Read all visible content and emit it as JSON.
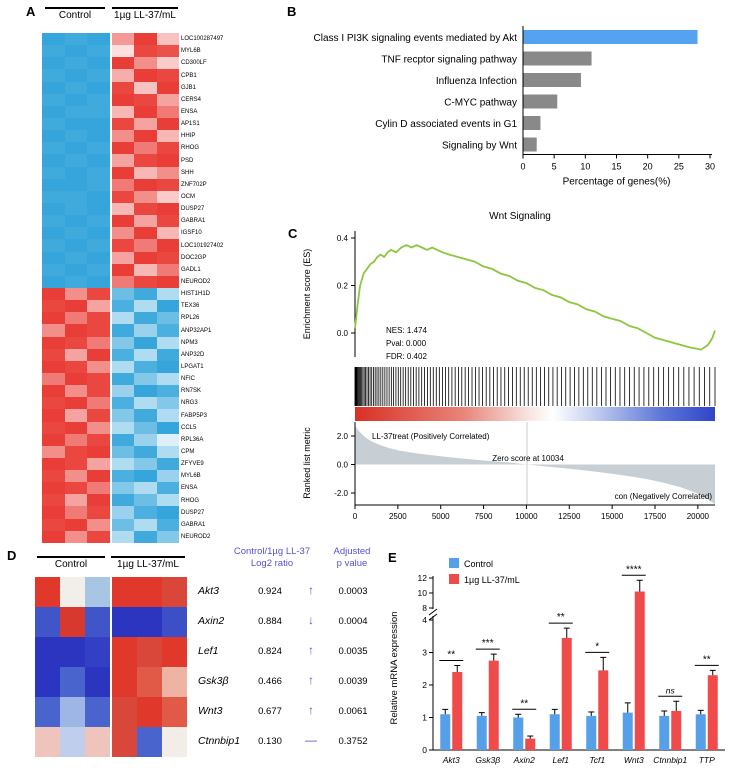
{
  "panel_a": {
    "label": "A",
    "group_headers": [
      "Control",
      "1µg LL-37/mL"
    ],
    "genes": [
      "LOC100287497",
      "MYL6B",
      "CD300LF",
      "CPB1",
      "GJB1",
      "CERS4",
      "ENSA",
      "AP1S1",
      "HHIP",
      "RHOG",
      "PSD",
      "SHH",
      "ZNF702P",
      "OCM",
      "DUSP27",
      "GABRA1",
      "IGSF10",
      "LOC101927402",
      "DOC2GP",
      "GADL1",
      "NEUROD2",
      "HIST1H1D",
      "TEX36",
      "RPL26",
      "ANP32AP1",
      "NPM3",
      "ANP32D",
      "LPGAT1",
      "NFIC",
      "RN7SK",
      "NRG3",
      "FABP5P3",
      "CCL5",
      "RPL36A",
      "CPM",
      "ZFYVE9",
      "MYL6B",
      "ENSA",
      "RHOG",
      "DUSP27",
      "GABRA1",
      "NEUROD2"
    ],
    "colors": {
      "positive": "#E8332C",
      "negative": "#1E9BD7"
    },
    "heatmap_values": [
      [
        -0.9,
        -0.85,
        -0.9,
        0.5,
        0.95,
        0.3
      ],
      [
        -0.85,
        -0.9,
        -0.85,
        0.15,
        0.9,
        0.85
      ],
      [
        -0.9,
        -0.85,
        -0.9,
        0.95,
        0.55,
        0.25
      ],
      [
        -0.85,
        -0.9,
        -0.85,
        0.4,
        0.95,
        0.9
      ],
      [
        -0.9,
        -0.85,
        -0.9,
        0.9,
        0.3,
        0.95
      ],
      [
        -0.85,
        -0.9,
        -0.85,
        0.95,
        0.9,
        0.45
      ],
      [
        -0.9,
        -0.85,
        -0.85,
        0.35,
        0.95,
        0.65
      ],
      [
        -0.85,
        -0.9,
        -0.9,
        0.9,
        0.45,
        0.95
      ],
      [
        -0.9,
        -0.85,
        -0.9,
        0.55,
        0.95,
        0.35
      ],
      [
        -0.85,
        -0.9,
        -0.85,
        0.95,
        0.65,
        0.9
      ],
      [
        -0.9,
        -0.85,
        -0.9,
        0.45,
        0.9,
        0.95
      ],
      [
        -0.85,
        -0.9,
        -0.85,
        0.95,
        0.35,
        0.55
      ],
      [
        -0.9,
        -0.9,
        -0.85,
        0.65,
        0.95,
        0.9
      ],
      [
        -0.85,
        -0.85,
        -0.9,
        0.9,
        0.55,
        0.25
      ],
      [
        -0.9,
        -0.85,
        -0.9,
        0.35,
        0.9,
        0.95
      ],
      [
        -0.85,
        -0.9,
        -0.85,
        0.95,
        0.45,
        0.9
      ],
      [
        -0.9,
        -0.85,
        -0.9,
        0.55,
        0.95,
        0.35
      ],
      [
        -0.85,
        -0.9,
        -0.85,
        0.9,
        0.65,
        0.95
      ],
      [
        -0.9,
        -0.85,
        -0.9,
        0.45,
        0.95,
        0.9
      ],
      [
        -0.85,
        -0.9,
        -0.85,
        0.95,
        0.35,
        0.65
      ],
      [
        -0.9,
        -0.85,
        -0.9,
        0.65,
        0.9,
        0.95
      ],
      [
        0.95,
        0.55,
        0.9,
        -0.65,
        -0.85,
        -0.35
      ],
      [
        0.9,
        0.95,
        0.45,
        -0.8,
        -0.35,
        -0.9
      ],
      [
        0.95,
        0.65,
        0.9,
        -0.35,
        -0.85,
        -0.65
      ],
      [
        0.55,
        0.95,
        0.9,
        -0.85,
        -0.45,
        -0.8
      ],
      [
        0.95,
        0.9,
        0.65,
        -0.55,
        -0.9,
        -0.35
      ],
      [
        0.9,
        0.45,
        0.95,
        -0.8,
        -0.35,
        -0.85
      ],
      [
        0.95,
        0.9,
        0.55,
        -0.35,
        -0.8,
        -0.9
      ],
      [
        0.65,
        0.95,
        0.9,
        -0.85,
        -0.55,
        -0.35
      ],
      [
        0.95,
        0.55,
        0.9,
        -0.45,
        -0.9,
        -0.8
      ],
      [
        0.9,
        0.95,
        0.65,
        -0.8,
        -0.35,
        -0.55
      ],
      [
        0.95,
        0.45,
        0.9,
        -0.55,
        -0.85,
        -0.35
      ],
      [
        0.9,
        0.95,
        0.55,
        -0.35,
        -0.65,
        -0.9
      ],
      [
        0.95,
        0.65,
        0.9,
        -0.85,
        -0.45,
        -0.15
      ],
      [
        0.55,
        0.9,
        0.95,
        -0.65,
        -0.85,
        -0.35
      ],
      [
        0.95,
        0.9,
        0.45,
        -0.35,
        -0.55,
        -0.85
      ],
      [
        0.9,
        0.55,
        0.95,
        -0.8,
        -0.9,
        -0.45
      ],
      [
        0.95,
        0.9,
        0.65,
        -0.55,
        -0.35,
        -0.8
      ],
      [
        0.9,
        0.45,
        0.95,
        -0.85,
        -0.65,
        -0.35
      ],
      [
        0.95,
        0.65,
        0.9,
        -0.45,
        -0.8,
        -0.9
      ],
      [
        0.9,
        0.95,
        0.55,
        -0.65,
        -0.35,
        -0.8
      ],
      [
        0.95,
        0.55,
        0.9,
        -0.35,
        -0.85,
        -0.55
      ]
    ]
  },
  "panel_b": {
    "label": "B",
    "chart_data": {
      "type": "bar",
      "orientation": "horizontal",
      "categories": [
        "Class I PI3K signaling events mediated by Akt",
        "TNF recptor signaling pathway",
        "Influenza Infection",
        "C-MYC pathway",
        "Cylin D associated events in G1",
        "Signaling by Wnt"
      ],
      "values": [
        28,
        11,
        9.3,
        5.5,
        2.8,
        2.2
      ],
      "xlabel": "Percentage of genes(%)",
      "xlim": [
        0,
        30
      ],
      "xticks": [
        0,
        5,
        10,
        15,
        20,
        25,
        30
      ],
      "highlight_color": "#55A3F0",
      "bar_color": "#898989"
    }
  },
  "panel_c": {
    "label": "C",
    "title": "Wnt Signaling",
    "chart_data": {
      "type": "line",
      "es_ylabel": "Enrichment score (ES)",
      "es_yticks": [
        0.0,
        0.2,
        0.4
      ],
      "curve_color": "#8DC63F",
      "stats": [
        "NES: 1.474",
        "Pval: 0.000",
        "FDR: 0.402"
      ],
      "es_curve": [
        [
          0,
          0.02
        ],
        [
          150,
          0.12
        ],
        [
          300,
          0.2
        ],
        [
          500,
          0.25
        ],
        [
          700,
          0.27
        ],
        [
          900,
          0.29
        ],
        [
          1100,
          0.3
        ],
        [
          1300,
          0.32
        ],
        [
          1500,
          0.33
        ],
        [
          1700,
          0.32
        ],
        [
          1900,
          0.34
        ],
        [
          2100,
          0.35
        ],
        [
          2400,
          0.34
        ],
        [
          2700,
          0.36
        ],
        [
          3000,
          0.37
        ],
        [
          3300,
          0.36
        ],
        [
          3600,
          0.37
        ],
        [
          3900,
          0.36
        ],
        [
          4200,
          0.35
        ],
        [
          4500,
          0.36
        ],
        [
          4800,
          0.35
        ],
        [
          5100,
          0.34
        ],
        [
          5500,
          0.33
        ],
        [
          6000,
          0.32
        ],
        [
          6500,
          0.31
        ],
        [
          7000,
          0.3
        ],
        [
          7500,
          0.28
        ],
        [
          8000,
          0.27
        ],
        [
          8500,
          0.25
        ],
        [
          9000,
          0.24
        ],
        [
          9500,
          0.22
        ],
        [
          10000,
          0.21
        ],
        [
          10500,
          0.19
        ],
        [
          11000,
          0.18
        ],
        [
          11500,
          0.16
        ],
        [
          12000,
          0.15
        ],
        [
          12500,
          0.13
        ],
        [
          13000,
          0.12
        ],
        [
          13500,
          0.1
        ],
        [
          14000,
          0.09
        ],
        [
          14500,
          0.07
        ],
        [
          15000,
          0.06
        ],
        [
          15500,
          0.05
        ],
        [
          16000,
          0.03
        ],
        [
          16500,
          0.02
        ],
        [
          17000,
          0
        ],
        [
          17500,
          -0.02
        ],
        [
          18000,
          -0.03
        ],
        [
          18500,
          -0.04
        ],
        [
          19000,
          -0.05
        ],
        [
          19500,
          -0.06
        ],
        [
          20200,
          -0.07
        ],
        [
          20600,
          -0.05
        ],
        [
          20850,
          -0.02
        ],
        [
          21000,
          0.01
        ]
      ],
      "barcode": {
        "count": 110,
        "exponent": 1.6
      },
      "rank_ylabel": "Ranked list metric",
      "rank_yticks": [
        2.0,
        0.0,
        -2.0
      ],
      "rank_curve": [
        [
          0,
          2.7
        ],
        [
          300,
          2.25
        ],
        [
          600,
          1.9
        ],
        [
          1000,
          1.6
        ],
        [
          1500,
          1.35
        ],
        [
          2000,
          1.15
        ],
        [
          2500,
          1.0
        ],
        [
          3000,
          0.9
        ],
        [
          3500,
          0.8
        ],
        [
          4000,
          0.72
        ],
        [
          5000,
          0.58
        ],
        [
          6000,
          0.45
        ],
        [
          7000,
          0.34
        ],
        [
          8000,
          0.24
        ],
        [
          9000,
          0.14
        ],
        [
          10034,
          0
        ],
        [
          11000,
          -0.12
        ],
        [
          12000,
          -0.24
        ],
        [
          13000,
          -0.36
        ],
        [
          14000,
          -0.5
        ],
        [
          15000,
          -0.65
        ],
        [
          16000,
          -0.82
        ],
        [
          17000,
          -1.02
        ],
        [
          18000,
          -1.28
        ],
        [
          19000,
          -1.6
        ],
        [
          20000,
          -2.05
        ],
        [
          20600,
          -2.45
        ],
        [
          21000,
          -2.8
        ]
      ],
      "pos_label": "LL-37treat (Positively Correlated)",
      "zero_label": "Zero score at 10034",
      "neg_label": "con (Negatively Correlated)",
      "pos_color": "#D6382C",
      "neg_color": "#2B50C8",
      "area_color": "#C7CFD4",
      "xmax": 21000,
      "xticks": [
        0,
        2500,
        5000,
        7500,
        10000,
        12500,
        15000,
        17500,
        20000
      ],
      "zero_cross": 10034
    }
  },
  "panel_d": {
    "label": "D",
    "group_headers": [
      "Control",
      "1µg LL-37/mL"
    ],
    "ratio_header": [
      "Control/1µg LL-37",
      "Log2 ratio"
    ],
    "p_header": [
      "Adjusted",
      "p value"
    ],
    "accent_color": "#5552CF",
    "heatmap_colors": [
      [
        "#E0392B",
        "#F2EFEB",
        "#A6C6E4",
        "#E0392B",
        "#E0392B",
        "#D8473A"
      ],
      [
        "#4056C8",
        "#D8392E",
        "#4056C8",
        "#2B35C0",
        "#2B35C0",
        "#3C4FC6"
      ],
      [
        "#2B35C0",
        "#2B35C0",
        "#333FC4",
        "#E0392B",
        "#D8473A",
        "#E0392B"
      ],
      [
        "#2B35C0",
        "#4A64CD",
        "#2B35C0",
        "#E0392B",
        "#E05A47",
        "#EFB3A4"
      ],
      [
        "#4A64CD",
        "#9DB6E6",
        "#4A64CD",
        "#D8473A",
        "#E0392B",
        "#E05A47"
      ],
      [
        "#EFC4BD",
        "#BFCEEC",
        "#EFC4BD",
        "#D8473A",
        "#4A64CD",
        "#F2EDE7"
      ]
    ],
    "rows": [
      {
        "gene": "Akt3",
        "log2": "0.924",
        "direction": "↑",
        "p": "0.0003"
      },
      {
        "gene": "Axin2",
        "log2": "0.884",
        "direction": "↓",
        "p": "0.0004"
      },
      {
        "gene": "Lef1",
        "log2": "0.824",
        "direction": "↑",
        "p": "0.0035"
      },
      {
        "gene": "Gsk3β",
        "log2": "0.466",
        "direction": "↑",
        "p": "0.0039"
      },
      {
        "gene": "Wnt3",
        "log2": "0.677",
        "direction": "↑",
        "p": "0.0061"
      },
      {
        "gene": "Ctnnbip1",
        "log2": "0.130",
        "direction": "—",
        "p": "0.3752"
      }
    ]
  },
  "panel_e": {
    "label": "E",
    "chart_data": {
      "type": "bar",
      "ylabel": "Relative mRNA expression",
      "categories": [
        "Akt3",
        "Gsk3β",
        "Axin2",
        "Lef1",
        "Tcf1",
        "Wnt3",
        "Ctnnbip1",
        "TTP"
      ],
      "series": [
        {
          "name": "Control",
          "color": "#55A0E8",
          "values": [
            1.1,
            1.05,
            1.0,
            1.1,
            1.05,
            1.15,
            1.05,
            1.1
          ],
          "errors": [
            0.15,
            0.1,
            0.1,
            0.15,
            0.12,
            0.3,
            0.15,
            0.12
          ]
        },
        {
          "name": "1µg LL-37/mL",
          "color": "#F04B4B",
          "values": [
            2.4,
            2.75,
            0.35,
            3.45,
            2.45,
            10.2,
            1.2,
            2.3
          ],
          "errors": [
            0.2,
            0.2,
            0.08,
            0.3,
            0.4,
            1.5,
            0.3,
            0.15
          ]
        }
      ],
      "significance": [
        "**",
        "***",
        "**",
        "**",
        "*",
        "****",
        "ns",
        "**"
      ],
      "yticks_lower": [
        0,
        1,
        2,
        3,
        4
      ],
      "yticks_upper": [
        8,
        10,
        12
      ]
    }
  }
}
